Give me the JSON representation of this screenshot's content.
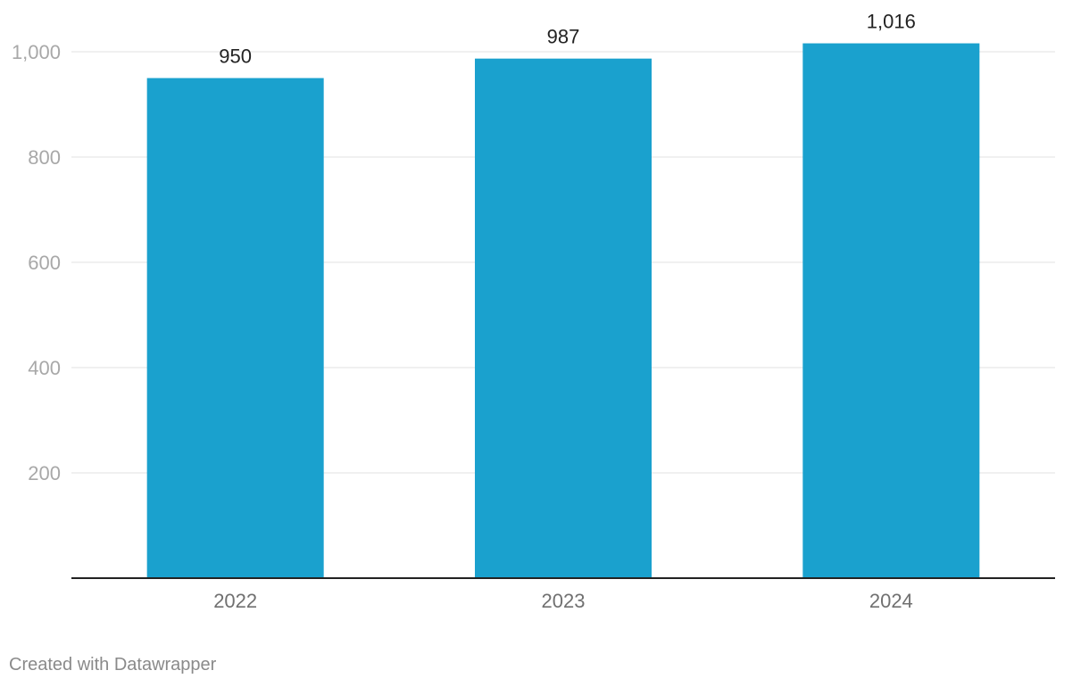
{
  "chart_data": {
    "type": "bar",
    "categories": [
      "2022",
      "2023",
      "2024"
    ],
    "values": [
      950,
      987,
      1016
    ],
    "value_labels": [
      "950",
      "987",
      "1,016"
    ],
    "y_ticks": [
      200,
      400,
      600,
      800,
      1000
    ],
    "y_tick_labels": [
      "200",
      "400",
      "600",
      "800",
      "1,000"
    ],
    "ylim": [
      0,
      1000
    ],
    "grid": true,
    "bar_color": "#1aa1ce",
    "title": "",
    "xlabel": "",
    "ylabel": ""
  },
  "footer": {
    "credit": "Created with Datawrapper"
  },
  "colors": {
    "bar": "#1aa1ce",
    "grid": "#e2e2e2",
    "axis": "#222222",
    "tick_text": "#a8a8a8",
    "category_text": "#707070",
    "value_text": "#222222"
  }
}
